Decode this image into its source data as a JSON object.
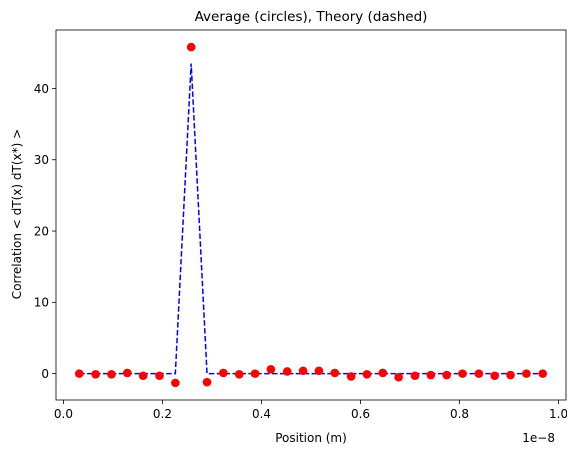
{
  "chart_data": {
    "type": "scatter",
    "title": "Average (circles), Theory (dashed)",
    "xlabel": "Position (m)",
    "ylabel": "Correlation < dT(x) dT(x*) >",
    "x_offset_label": "1e−8",
    "xlim": [
      -0.015,
      1.015
    ],
    "ylim": [
      -3.7,
      48.2
    ],
    "xticks": [
      0.0,
      0.2,
      0.4,
      0.6,
      0.8,
      1.0
    ],
    "xtick_labels": [
      "0.0",
      "0.2",
      "0.4",
      "0.6",
      "0.8",
      "1.0"
    ],
    "yticks": [
      0,
      10,
      20,
      30,
      40
    ],
    "ytick_labels": [
      "0",
      "10",
      "20",
      "30",
      "40"
    ],
    "grid": false,
    "series": [
      {
        "style": "circles",
        "color": "#ff0000",
        "x": [
          0.032,
          0.065,
          0.097,
          0.129,
          0.161,
          0.194,
          0.226,
          0.258,
          0.29,
          0.323,
          0.355,
          0.387,
          0.419,
          0.452,
          0.484,
          0.516,
          0.548,
          0.581,
          0.613,
          0.645,
          0.677,
          0.71,
          0.742,
          0.774,
          0.806,
          0.839,
          0.871,
          0.903,
          0.935,
          0.968
        ],
        "y": [
          0.0,
          -0.1,
          -0.1,
          0.1,
          -0.3,
          -0.3,
          -1.3,
          45.8,
          -1.2,
          0.1,
          -0.1,
          0.0,
          0.6,
          0.3,
          0.4,
          0.4,
          0.1,
          -0.4,
          -0.1,
          0.1,
          -0.5,
          -0.3,
          -0.2,
          -0.2,
          0.0,
          0.0,
          -0.3,
          -0.2,
          0.0,
          0.0
        ]
      },
      {
        "style": "dashed",
        "color": "#0000ff",
        "x": [
          0.032,
          0.065,
          0.097,
          0.129,
          0.161,
          0.194,
          0.226,
          0.258,
          0.29,
          0.323,
          0.355,
          0.387,
          0.419,
          0.452,
          0.484,
          0.516,
          0.548,
          0.581,
          0.613,
          0.645,
          0.677,
          0.71,
          0.742,
          0.774,
          0.806,
          0.839,
          0.871,
          0.903,
          0.935,
          0.968
        ],
        "y": [
          0,
          0,
          0,
          0,
          0,
          0,
          0,
          43.5,
          0,
          0,
          0,
          0,
          0,
          0,
          0,
          0,
          0,
          0,
          0,
          0,
          0,
          0,
          0,
          0,
          0,
          0,
          0,
          0,
          0,
          0
        ]
      }
    ]
  }
}
